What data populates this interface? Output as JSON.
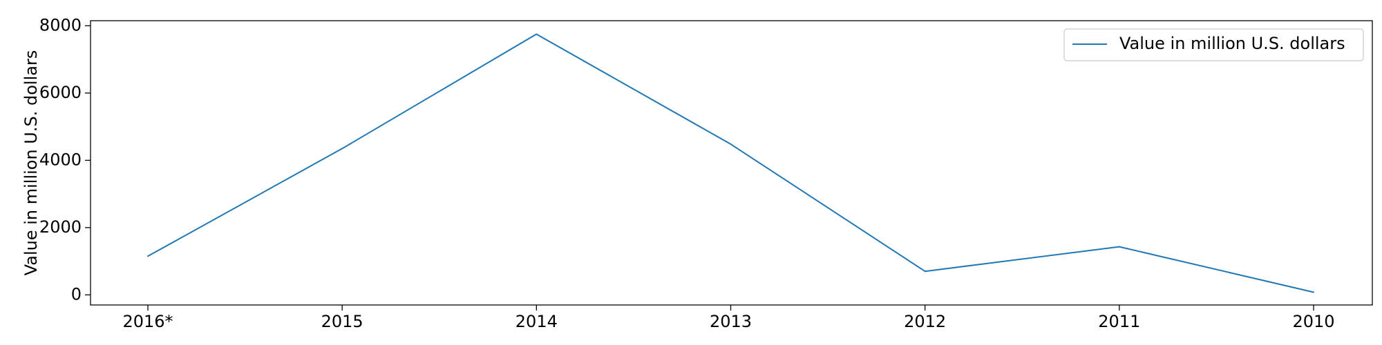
{
  "chart_data": {
    "type": "line",
    "categories": [
      "2016*",
      "2015",
      "2014",
      "2013",
      "2012",
      "2011",
      "2010"
    ],
    "series": [
      {
        "name": "Value in million U.S. dollars",
        "values": [
          1150,
          4350,
          7750,
          4480,
          700,
          1430,
          80
        ],
        "color": "#1f77b4"
      }
    ],
    "title": "",
    "xlabel": "",
    "ylabel": "Value in million U.S. dollars",
    "ylim": [
      -300,
      8150
    ],
    "yticks": [
      0,
      2000,
      4000,
      6000,
      8000
    ],
    "ytick_labels": [
      "0",
      "2000",
      "4000",
      "6000",
      "8000"
    ],
    "grid": false,
    "legend_position": "top-right"
  }
}
